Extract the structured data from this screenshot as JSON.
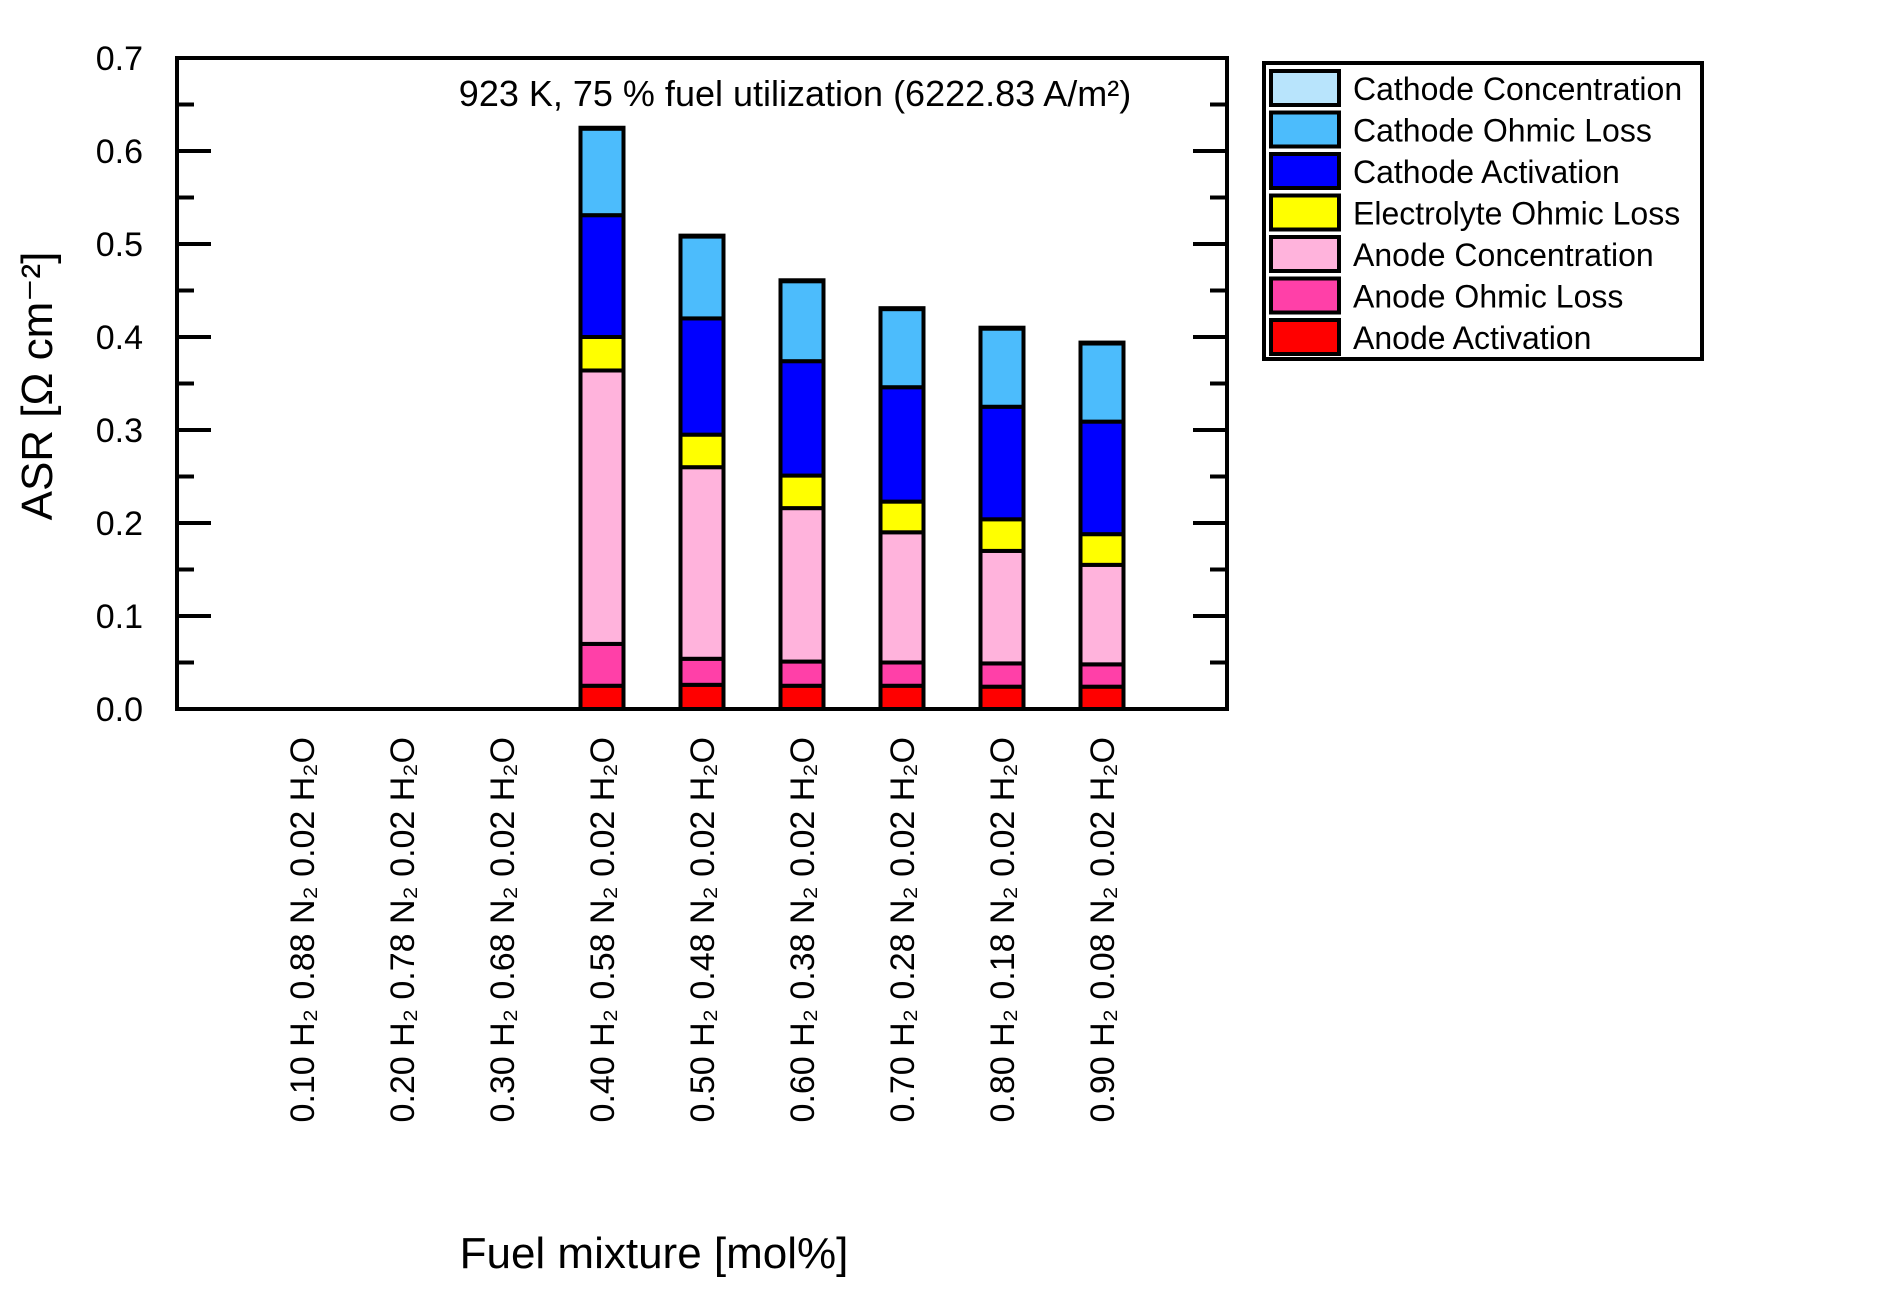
{
  "chart_data": {
    "type": "bar",
    "stacked": true,
    "title": "923 K, 75 % fuel utilization (6222.83 A/m²)",
    "xlabel": "Fuel mixture [mol%]",
    "ylabel": "ASR [Ω cm⁻²]",
    "ylim": [
      0,
      0.7
    ],
    "yticks": [
      "0.0",
      "0.1",
      "0.2",
      "0.3",
      "0.4",
      "0.5",
      "0.6",
      "0.7"
    ],
    "legend_position": "outside-top-right",
    "categories": [
      "0.10 H₂ 0.88 N₂ 0.02 H₂O",
      "0.20 H₂ 0.78 N₂ 0.02 H₂O",
      "0.30 H₂ 0.68 N₂ 0.02 H₂O",
      "0.40 H₂ 0.58 N₂ 0.02 H₂O",
      "0.50 H₂ 0.48 N₂ 0.02 H₂O",
      "0.60 H₂ 0.38 N₂ 0.02 H₂O",
      "0.70 H₂ 0.28 N₂ 0.02 H₂O",
      "0.80 H₂ 0.18 N₂ 0.02 H₂O",
      "0.90 H₂ 0.08 N₂ 0.02 H₂O"
    ],
    "series": [
      {
        "name": "Anode Activation",
        "color": "#ff0000",
        "values": [
          null,
          null,
          null,
          0.025,
          0.026,
          0.025,
          0.025,
          0.024,
          0.024
        ]
      },
      {
        "name": "Anode Ohmic Loss",
        "color": "#ff40a8",
        "values": [
          null,
          null,
          null,
          0.045,
          0.028,
          0.026,
          0.025,
          0.025,
          0.024
        ]
      },
      {
        "name": "Anode Concentration",
        "color": "#ffb3dc",
        "values": [
          null,
          null,
          null,
          0.294,
          0.206,
          0.165,
          0.14,
          0.121,
          0.107
        ]
      },
      {
        "name": "Electrolyte Ohmic Loss",
        "color": "#ffff00",
        "values": [
          null,
          null,
          null,
          0.036,
          0.035,
          0.035,
          0.033,
          0.034,
          0.033
        ]
      },
      {
        "name": "Cathode Activation",
        "color": "#0000ff",
        "values": [
          null,
          null,
          null,
          0.131,
          0.125,
          0.123,
          0.123,
          0.121,
          0.121
        ]
      },
      {
        "name": "Cathode Ohmic Loss",
        "color": "#4cbcfc",
        "values": [
          null,
          null,
          null,
          0.093,
          0.088,
          0.086,
          0.084,
          0.084,
          0.084
        ]
      },
      {
        "name": "Cathode Concentration",
        "color": "#b8e4fc",
        "values": [
          null,
          null,
          null,
          0.001,
          0.001,
          0.001,
          0.001,
          0.001,
          0.001
        ]
      }
    ]
  }
}
